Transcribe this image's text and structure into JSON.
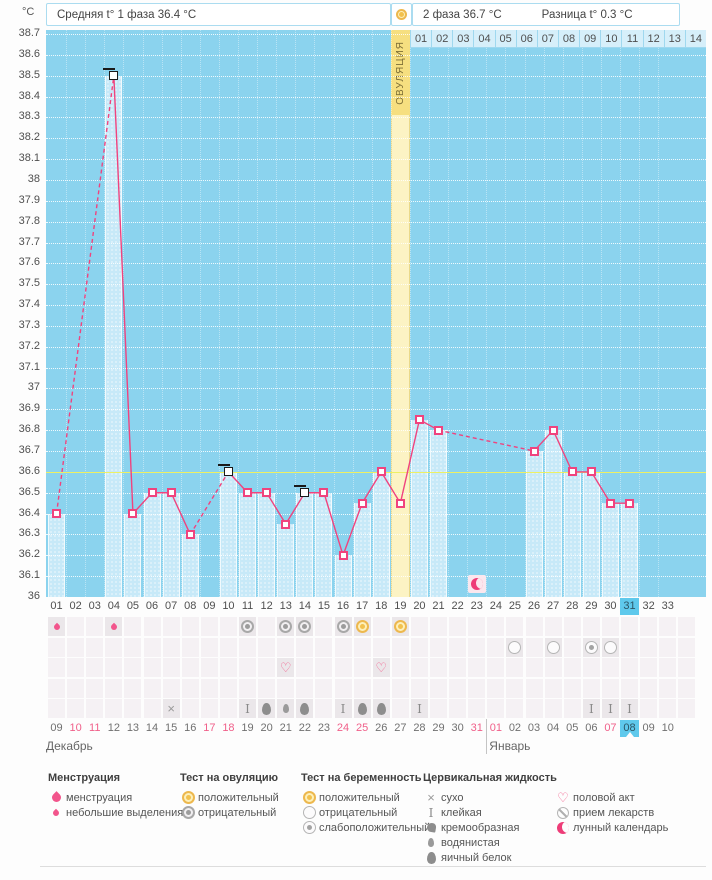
{
  "header": {
    "unit": "°C",
    "phase1_label": "Средняя t° 1 фаза 36.4 °C",
    "phase2_label": "2 фаза 36.7 °C",
    "diff_label": "Разница t° 0.3 °C"
  },
  "chart_data": {
    "type": "line",
    "ylabel": "°C",
    "ylim": [
      36,
      38.7
    ],
    "ystep": 0.1,
    "coverline": 36.6,
    "cycle_days": 33,
    "day_labels": [
      "01",
      "02",
      "03",
      "04",
      "05",
      "06",
      "07",
      "08",
      "09",
      "10",
      "11",
      "12",
      "13",
      "14",
      "15",
      "16",
      "17",
      "18",
      "19",
      "20",
      "21",
      "22",
      "23",
      "24",
      "25",
      "26",
      "27",
      "28",
      "29",
      "30",
      "31",
      "32",
      "33"
    ],
    "temps": [
      36.4,
      null,
      null,
      38.5,
      36.4,
      36.5,
      36.5,
      36.3,
      null,
      36.6,
      36.5,
      36.5,
      36.35,
      36.5,
      36.5,
      36.2,
      36.45,
      36.6,
      36.45,
      36.85,
      36.8,
      null,
      null,
      null,
      null,
      36.7,
      36.8,
      36.6,
      36.6,
      36.45,
      36.45,
      null,
      null
    ],
    "flagged_days": [
      4,
      10,
      14
    ],
    "ovulation_day": 19,
    "ovulation_label": "ОВУЛЯЦИЯ",
    "today_cycle_day": 31,
    "moon_day": 23,
    "phase2_day_labels": [
      "01",
      "02",
      "03",
      "04",
      "05",
      "06",
      "07",
      "08",
      "09",
      "10",
      "11",
      "12",
      "13",
      "14"
    ],
    "line_color": "#f0437e",
    "coverline_color": "#eef063",
    "bar_color": "#c7e9f8",
    "plot_bg": "#8bd3ee",
    "ovulation_band_color": "#f6df80",
    "today_highlight": "#5fc9ec"
  },
  "symbol_rows": [
    {
      "name": "bleeding-and-ovulation-tests",
      "entries": [
        {
          "day": 1,
          "icon": "drop-small"
        },
        {
          "day": 4,
          "icon": "drop-small"
        },
        {
          "day": 11,
          "icon": "test-negative"
        },
        {
          "day": 13,
          "icon": "test-negative"
        },
        {
          "day": 14,
          "icon": "test-negative"
        },
        {
          "day": 16,
          "icon": "test-negative"
        },
        {
          "day": 17,
          "icon": "test-positive"
        },
        {
          "day": 19,
          "icon": "test-positive"
        }
      ]
    },
    {
      "name": "pregnancy-tests",
      "entries": [
        {
          "day": 25,
          "icon": "preg-negative"
        },
        {
          "day": 27,
          "icon": "preg-negative"
        },
        {
          "day": 29,
          "icon": "preg-weak"
        },
        {
          "day": 30,
          "icon": "preg-negative"
        }
      ]
    },
    {
      "name": "intercourse",
      "entries": [
        {
          "day": 13,
          "icon": "heart"
        },
        {
          "day": 18,
          "icon": "heart"
        }
      ]
    },
    {
      "name": "medication",
      "entries": []
    },
    {
      "name": "cervical-fluid",
      "entries": [
        {
          "day": 7,
          "icon": "dry"
        },
        {
          "day": 11,
          "icon": "sticky"
        },
        {
          "day": 12,
          "icon": "eggwhite"
        },
        {
          "day": 13,
          "icon": "watery"
        },
        {
          "day": 14,
          "icon": "eggwhite"
        },
        {
          "day": 16,
          "icon": "sticky"
        },
        {
          "day": 17,
          "icon": "eggwhite"
        },
        {
          "day": 18,
          "icon": "eggwhite"
        },
        {
          "day": 20,
          "icon": "sticky"
        },
        {
          "day": 29,
          "icon": "sticky"
        },
        {
          "day": 30,
          "icon": "sticky"
        },
        {
          "day": 31,
          "icon": "sticky"
        }
      ]
    }
  ],
  "dates": {
    "labels": [
      "09",
      "10",
      "11",
      "12",
      "13",
      "14",
      "15",
      "16",
      "17",
      "18",
      "19",
      "20",
      "21",
      "22",
      "23",
      "24",
      "25",
      "26",
      "27",
      "28",
      "29",
      "30",
      "31",
      "01",
      "02",
      "03",
      "04",
      "05",
      "06",
      "07",
      "08",
      "09",
      "10"
    ],
    "weekend_indices": [
      1,
      2,
      8,
      9,
      15,
      16,
      22,
      23,
      29
    ],
    "today_index": 30,
    "months": [
      {
        "name": "Декабрь",
        "day_index": 0
      },
      {
        "name": "Январь",
        "day_index": 23
      }
    ]
  },
  "legend": {
    "columns": [
      {
        "title": "Менструация",
        "items": [
          {
            "icon": "drop-large",
            "label": "менструация"
          },
          {
            "icon": "drop-small",
            "label": "небольшие выделения"
          }
        ]
      },
      {
        "title": "Тест на овуляцию",
        "items": [
          {
            "icon": "test-positive",
            "label": "положительный"
          },
          {
            "icon": "test-negative",
            "label": "отрицательный"
          }
        ]
      },
      {
        "title": "Тест на беременность",
        "items": [
          {
            "icon": "preg-positive",
            "label": "положительный"
          },
          {
            "icon": "preg-negative",
            "label": "отрицательный"
          },
          {
            "icon": "preg-weak",
            "label": "слабоположительный"
          }
        ]
      },
      {
        "title": "Цервикальная жидкость",
        "items": [
          {
            "icon": "dry",
            "label": "сухо"
          },
          {
            "icon": "sticky",
            "label": "клейкая"
          },
          {
            "icon": "creamy",
            "label": "кремообразная"
          },
          {
            "icon": "watery",
            "label": "водянистая"
          },
          {
            "icon": "eggwhite",
            "label": "яичный белок"
          }
        ]
      },
      {
        "title": "",
        "items": [
          {
            "icon": "heart",
            "label": "половой акт"
          },
          {
            "icon": "meds",
            "label": "прием лекарств"
          },
          {
            "icon": "moon",
            "label": "лунный календарь"
          }
        ]
      }
    ]
  }
}
